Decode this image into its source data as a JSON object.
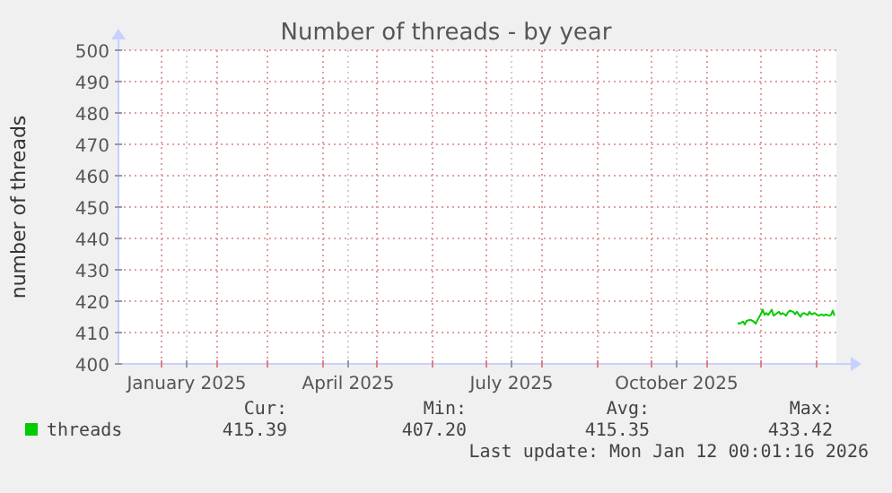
{
  "chart_data": {
    "type": "line",
    "title": "Number of threads - by year",
    "ylabel": "number of threads",
    "x": [
      "2025-11-18",
      "2025-11-19",
      "2025-11-21",
      "2025-11-22",
      "2025-11-23",
      "2025-11-25",
      "2025-11-27",
      "2025-11-28",
      "2025-11-29",
      "2025-12-01",
      "2025-12-02",
      "2025-12-03",
      "2025-12-04",
      "2025-12-05",
      "2025-12-07",
      "2025-12-08",
      "2025-12-09",
      "2025-12-11",
      "2025-12-12",
      "2025-12-13",
      "2025-12-15",
      "2025-12-16",
      "2025-12-17",
      "2025-12-19",
      "2025-12-20",
      "2025-12-21",
      "2025-12-23",
      "2025-12-24",
      "2025-12-25",
      "2025-12-27",
      "2025-12-28",
      "2025-12-29",
      "2025-12-31",
      "2026-01-01",
      "2026-01-02",
      "2026-01-04",
      "2026-01-05",
      "2026-01-06",
      "2026-01-08",
      "2026-01-09",
      "2026-01-10",
      "2026-01-11"
    ],
    "series": [
      {
        "name": "threads",
        "color": "#00cc00",
        "values": [
          413.1,
          412.8,
          413.5,
          412.6,
          413.7,
          414.1,
          413.5,
          412.8,
          413.9,
          416.0,
          417.3,
          415.6,
          416.2,
          415.6,
          417.3,
          415.4,
          415.8,
          416.6,
          415.8,
          416.2,
          415.4,
          416.4,
          417.0,
          416.6,
          415.8,
          416.6,
          415.0,
          416.0,
          416.2,
          415.6,
          416.6,
          415.8,
          416.2,
          415.8,
          415.4,
          415.8,
          415.4,
          415.8,
          415.4,
          415.6,
          417.0,
          415.4
        ]
      }
    ],
    "xlim": [
      "2024-12-08",
      "2026-01-12"
    ],
    "xticks": [
      {
        "value": "2025-01-01",
        "label": null
      },
      {
        "value": "2025-01-15",
        "label": "January 2025"
      },
      {
        "value": "2025-02-01",
        "label": null
      },
      {
        "value": "2025-03-01",
        "label": null
      },
      {
        "value": "2025-04-01",
        "label": null
      },
      {
        "value": "2025-04-15",
        "label": "April 2025"
      },
      {
        "value": "2025-05-01",
        "label": null
      },
      {
        "value": "2025-06-01",
        "label": null
      },
      {
        "value": "2025-07-01",
        "label": null
      },
      {
        "value": "2025-07-15",
        "label": "July 2025"
      },
      {
        "value": "2025-08-01",
        "label": null
      },
      {
        "value": "2025-09-01",
        "label": null
      },
      {
        "value": "2025-10-01",
        "label": null
      },
      {
        "value": "2025-10-15",
        "label": "October 2025"
      },
      {
        "value": "2025-11-01",
        "label": null
      },
      {
        "value": "2025-12-01",
        "label": null
      },
      {
        "value": "2026-01-01",
        "label": null
      }
    ],
    "ylim": [
      400,
      500
    ],
    "yticks": [
      400,
      410,
      420,
      430,
      440,
      450,
      460,
      470,
      480,
      490,
      500
    ],
    "grid": true,
    "legend": "bottom left",
    "marker": "none",
    "line_style": "solid",
    "annotations": [
      "Cur:",
      "415.39",
      "Min:",
      "407.20",
      "Avg:",
      "415.35",
      "Max:",
      "433.42",
      "Last update: Mon Jan 12 00:01:16 2026"
    ]
  }
}
